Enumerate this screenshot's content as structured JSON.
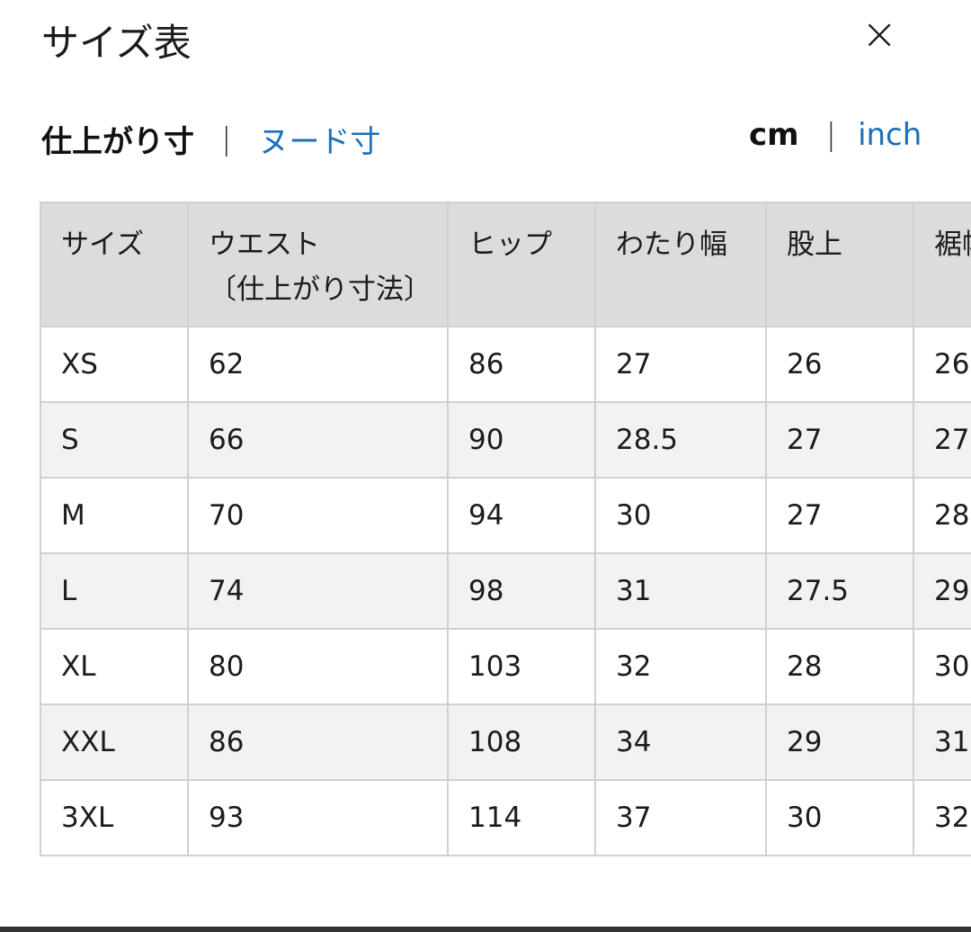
{
  "header": {
    "title": "サイズ表",
    "close": "×"
  },
  "tabs": {
    "items": [
      "仕上がり寸",
      "ヌード寸"
    ],
    "separator": "|"
  },
  "units": {
    "items": [
      "cm",
      "inch"
    ],
    "separator": "|"
  },
  "table": {
    "columns": [
      "サイズ",
      "ウエスト\n〔仕上がり寸法〕",
      "ヒップ",
      "わたり幅",
      "股上",
      "裾幅"
    ],
    "rows": [
      [
        "XS",
        "62",
        "86",
        "27",
        "26",
        "26"
      ],
      [
        "S",
        "66",
        "90",
        "28.5",
        "27",
        "27"
      ],
      [
        "M",
        "70",
        "94",
        "30",
        "27",
        "28"
      ],
      [
        "L",
        "74",
        "98",
        "31",
        "27.5",
        "29"
      ],
      [
        "XL",
        "80",
        "103",
        "32",
        "28",
        "30"
      ],
      [
        "XXL",
        "86",
        "108",
        "34",
        "29",
        "31"
      ],
      [
        "3XL",
        "93",
        "114",
        "37",
        "30",
        "32"
      ]
    ]
  }
}
